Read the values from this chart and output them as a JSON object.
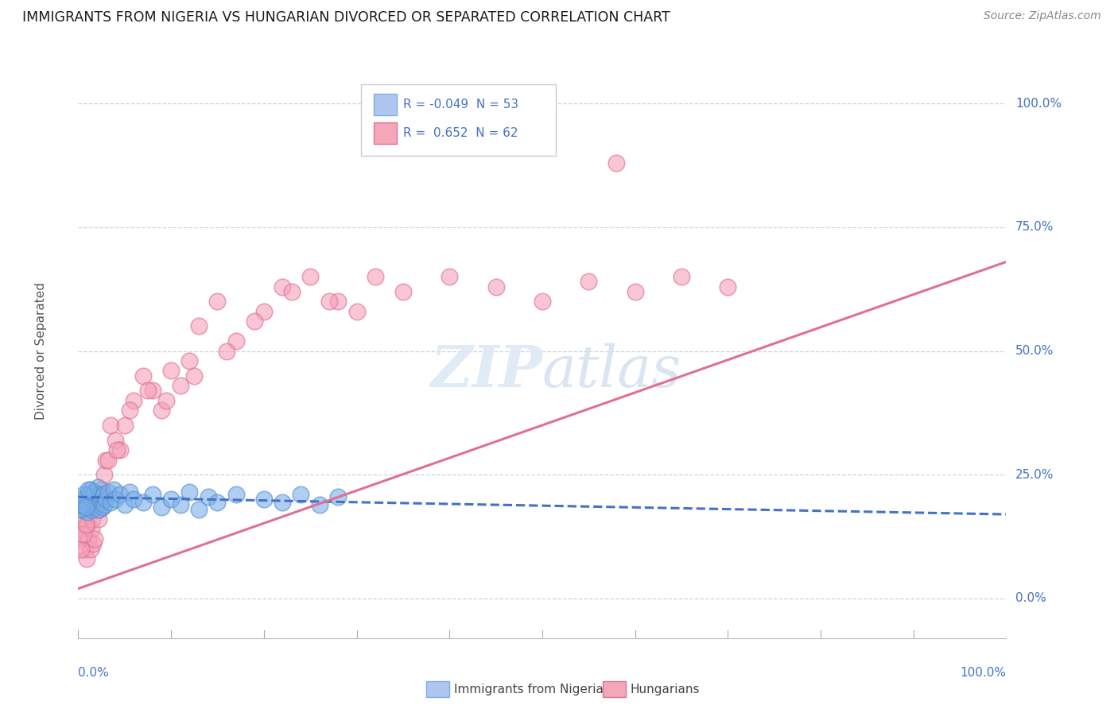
{
  "title": "IMMIGRANTS FROM NIGERIA VS HUNGARIAN DIVORCED OR SEPARATED CORRELATION CHART",
  "source": "Source: ZipAtlas.com",
  "ylabel": "Divorced or Separated",
  "nigeria_color": "#7aaee8",
  "nigeria_edge_color": "#5590d0",
  "hungarian_color": "#f4a0b8",
  "hungarian_edge_color": "#e07090",
  "nigeria_line_color": "#4472c4",
  "hungarian_line_color": "#e07090",
  "background_color": "#ffffff",
  "grid_color": "#c8d4e8",
  "nigeria_scatter_x": [
    0.3,
    0.5,
    0.7,
    0.9,
    1.0,
    1.1,
    1.2,
    1.3,
    1.4,
    1.5,
    1.6,
    1.7,
    1.8,
    1.9,
    2.0,
    2.1,
    2.2,
    2.3,
    2.4,
    2.5,
    2.6,
    2.7,
    2.8,
    3.0,
    3.2,
    3.5,
    3.8,
    4.0,
    4.5,
    5.0,
    5.5,
    6.0,
    7.0,
    8.0,
    9.0,
    10.0,
    11.0,
    12.0,
    13.0,
    14.0,
    15.0,
    17.0,
    20.0,
    22.0,
    24.0,
    26.0,
    28.0,
    0.1,
    0.2,
    0.4,
    0.6,
    0.8,
    1.05
  ],
  "nigeria_scatter_y": [
    18.0,
    19.5,
    20.0,
    18.5,
    17.5,
    21.0,
    19.0,
    22.0,
    18.0,
    20.5,
    19.5,
    21.5,
    18.5,
    20.0,
    19.0,
    22.5,
    18.0,
    21.0,
    19.5,
    20.5,
    18.5,
    21.0,
    19.0,
    20.0,
    21.5,
    19.5,
    22.0,
    20.0,
    21.0,
    19.0,
    21.5,
    20.0,
    19.5,
    21.0,
    18.5,
    20.0,
    19.0,
    21.5,
    18.0,
    20.5,
    19.5,
    21.0,
    20.0,
    19.5,
    21.0,
    19.0,
    20.5,
    18.0,
    20.0,
    19.0,
    21.0,
    18.5,
    22.0
  ],
  "hungarian_scatter_x": [
    0.2,
    0.4,
    0.5,
    0.7,
    0.8,
    0.9,
    1.0,
    1.1,
    1.2,
    1.3,
    1.4,
    1.5,
    1.6,
    1.7,
    1.8,
    2.0,
    2.2,
    2.5,
    2.8,
    3.0,
    3.5,
    4.0,
    4.5,
    5.0,
    6.0,
    7.0,
    8.0,
    9.0,
    10.0,
    11.0,
    12.0,
    13.0,
    15.0,
    17.0,
    20.0,
    22.0,
    25.0,
    28.0,
    30.0,
    35.0,
    40.0,
    45.0,
    50.0,
    55.0,
    60.0,
    65.0,
    70.0,
    0.3,
    0.6,
    0.85,
    2.3,
    3.2,
    4.2,
    5.5,
    7.5,
    9.5,
    12.5,
    16.0,
    19.0,
    23.0,
    27.0,
    32.0
  ],
  "hungarian_scatter_y": [
    14.0,
    12.0,
    16.0,
    10.0,
    18.0,
    8.0,
    15.0,
    12.0,
    17.0,
    10.0,
    14.0,
    16.0,
    11.0,
    18.0,
    12.0,
    20.0,
    16.0,
    22.0,
    25.0,
    28.0,
    35.0,
    32.0,
    30.0,
    35.0,
    40.0,
    45.0,
    42.0,
    38.0,
    46.0,
    43.0,
    48.0,
    55.0,
    60.0,
    52.0,
    58.0,
    63.0,
    65.0,
    60.0,
    58.0,
    62.0,
    65.0,
    63.0,
    60.0,
    64.0,
    62.0,
    65.0,
    63.0,
    10.0,
    13.0,
    15.0,
    18.0,
    28.0,
    30.0,
    38.0,
    42.0,
    40.0,
    45.0,
    50.0,
    56.0,
    62.0,
    60.0,
    65.0
  ],
  "hungary_outlier_x": 58.0,
  "hungary_outlier_y": 88.0,
  "nigeria_trend_x0": 0.0,
  "nigeria_trend_x1": 100.0,
  "nigeria_trend_y0": 20.5,
  "nigeria_trend_y1": 17.0,
  "hungarian_trend_x0": 0.0,
  "hungarian_trend_x1": 100.0,
  "hungarian_trend_y0": 2.0,
  "hungarian_trend_y1": 68.0,
  "xlim_min": 0.0,
  "xlim_max": 100.0,
  "ylim_min": -8.0,
  "ylim_max": 108.0,
  "ytick_values": [
    0.0,
    25.0,
    50.0,
    75.0,
    100.0
  ],
  "ytick_labels": [
    "0.0%",
    "25.0%",
    "50.0%",
    "75.0%",
    "100.0%"
  ],
  "legend_r1": "R = -0.049  N = 53",
  "legend_r2": "R =  0.652  N = 62",
  "legend_label1": "Immigrants from Nigeria",
  "legend_label2": "Hungarians"
}
